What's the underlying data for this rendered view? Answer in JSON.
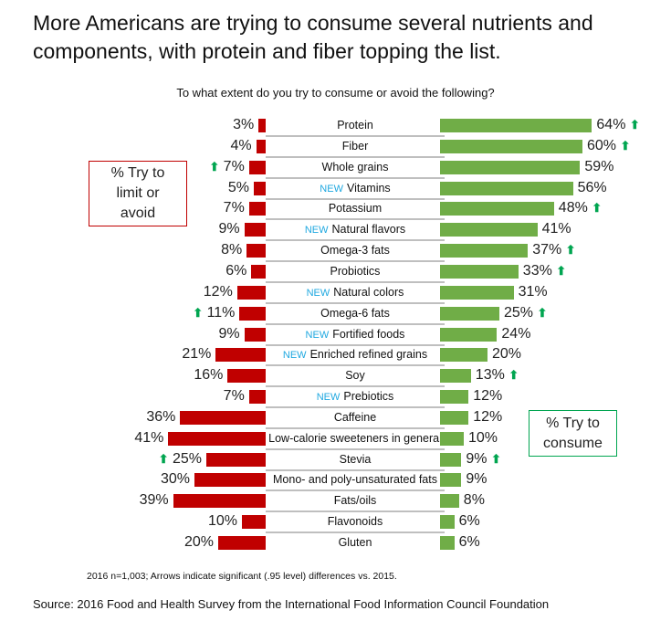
{
  "title": "More Americans are trying to consume several nutrients and components, with protein and fiber topping the list.",
  "chart_data": {
    "type": "bar",
    "title": "To what extent do you try to consume or avoid the following?",
    "categories": [
      "Protein",
      "Fiber",
      "Whole grains",
      "Vitamins",
      "Potassium",
      "Natural flavors",
      "Omega-3 fats",
      "Probiotics",
      "Natural colors",
      "Omega-6 fats",
      "Fortified foods",
      "Enriched refined grains",
      "Soy",
      "Prebiotics",
      "Caffeine",
      "Low-calorie sweeteners  in general",
      "Stevia",
      "Mono- and poly-unsaturated fats",
      "Fats/oils",
      "Flavonoids",
      "Gluten"
    ],
    "new_flags": [
      false,
      false,
      false,
      true,
      false,
      true,
      false,
      false,
      true,
      false,
      true,
      true,
      false,
      true,
      false,
      false,
      false,
      false,
      false,
      false,
      false
    ],
    "new_label": "NEW",
    "series": [
      {
        "name": "% Try to limit or avoid",
        "color": "#c00000",
        "values": [
          3,
          4,
          7,
          5,
          7,
          9,
          8,
          6,
          12,
          11,
          9,
          21,
          16,
          7,
          36,
          41,
          25,
          30,
          39,
          10,
          20
        ],
        "significant_up": [
          false,
          false,
          true,
          false,
          false,
          false,
          false,
          false,
          false,
          true,
          false,
          false,
          false,
          false,
          false,
          false,
          true,
          false,
          false,
          false,
          false
        ]
      },
      {
        "name": "% Try to consume",
        "color": "#70ad47",
        "values": [
          64,
          60,
          59,
          56,
          48,
          41,
          37,
          33,
          31,
          25,
          24,
          20,
          13,
          12,
          12,
          10,
          9,
          9,
          8,
          6,
          6
        ],
        "significant_up": [
          true,
          true,
          false,
          false,
          true,
          false,
          true,
          true,
          false,
          true,
          false,
          false,
          true,
          false,
          false,
          false,
          true,
          false,
          false,
          false,
          false
        ]
      }
    ],
    "value_suffix": "%",
    "arrow_color": "#00a550"
  },
  "legend": {
    "limit": "% Try to limit or avoid",
    "consume": "% Try to consume"
  },
  "footnote": "2016 n=1,003; Arrows indicate significant (.95 level) differences vs. 2015.",
  "source": "Source: 2016 Food and Health Survey from the International Food Information Council Foundation"
}
